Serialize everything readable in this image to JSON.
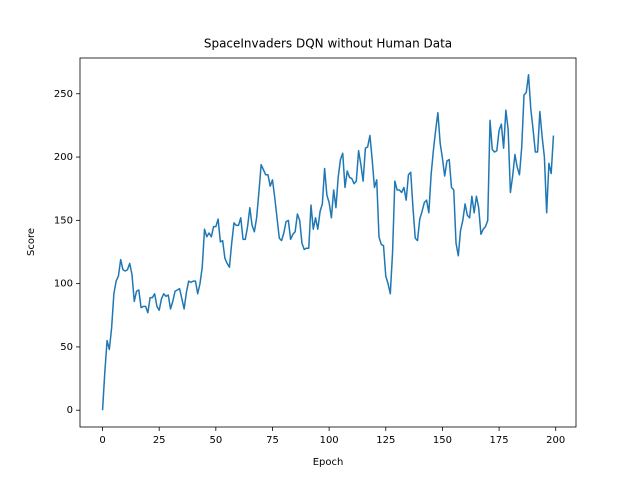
{
  "chart_data": {
    "type": "line",
    "title": "SpaceInvaders DQN without Human Data",
    "x_label": "Epoch",
    "y_label": "Score",
    "x": [
      0,
      1,
      2,
      3,
      4,
      5,
      6,
      7,
      8,
      9,
      10,
      11,
      12,
      13,
      14,
      15,
      16,
      17,
      18,
      19,
      20,
      21,
      22,
      23,
      24,
      25,
      26,
      27,
      28,
      29,
      30,
      31,
      32,
      33,
      34,
      35,
      36,
      37,
      38,
      39,
      40,
      41,
      42,
      43,
      44,
      45,
      46,
      47,
      48,
      49,
      50,
      51,
      52,
      53,
      54,
      55,
      56,
      57,
      58,
      59,
      60,
      61,
      62,
      63,
      64,
      65,
      66,
      67,
      68,
      69,
      70,
      71,
      72,
      73,
      74,
      75,
      76,
      77,
      78,
      79,
      80,
      81,
      82,
      83,
      84,
      85,
      86,
      87,
      88,
      89,
      90,
      91,
      92,
      93,
      94,
      95,
      96,
      97,
      98,
      99,
      100,
      101,
      102,
      103,
      104,
      105,
      106,
      107,
      108,
      109,
      110,
      111,
      112,
      113,
      114,
      115,
      116,
      117,
      118,
      119,
      120,
      121,
      122,
      123,
      124,
      125,
      126,
      127,
      128,
      129,
      130,
      131,
      132,
      133,
      134,
      135,
      136,
      137,
      138,
      139,
      140,
      141,
      142,
      143,
      144,
      145,
      146,
      147,
      148,
      149,
      150,
      151,
      152,
      153,
      154,
      155,
      156,
      157,
      158,
      159,
      160,
      161,
      162,
      163,
      164,
      165,
      166,
      167,
      168,
      169,
      170,
      171,
      172,
      173,
      174,
      175,
      176,
      177,
      178,
      179,
      180,
      181,
      182,
      183,
      184,
      185,
      186,
      187,
      188,
      189,
      190,
      191,
      192,
      193,
      194,
      195,
      196,
      197,
      198,
      199
    ],
    "series": [
      {
        "color": "#1f77b4",
        "values": [
          0,
          30,
          55,
          48,
          65,
          92,
          102,
          106,
          119,
          111,
          110,
          111,
          116,
          107,
          86,
          94,
          95,
          81,
          82,
          82,
          77,
          89,
          89,
          92,
          82,
          79,
          88,
          92,
          90,
          91,
          80,
          86,
          94,
          95,
          96,
          88,
          80,
          93,
          102,
          101,
          102,
          102,
          92,
          100,
          113,
          143,
          137,
          140,
          137,
          145,
          145,
          151,
          133,
          134,
          120,
          116,
          113,
          132,
          148,
          146,
          146,
          152,
          135,
          135,
          145,
          160,
          146,
          141,
          152,
          172,
          194,
          190,
          186,
          186,
          177,
          182,
          168,
          152,
          136,
          134,
          140,
          149,
          150,
          135,
          139,
          141,
          155,
          150,
          132,
          127,
          128,
          128,
          162,
          143,
          152,
          143,
          157,
          163,
          191,
          170,
          164,
          152,
          174,
          160,
          184,
          198,
          203,
          176,
          189,
          184,
          183,
          179,
          181,
          205,
          194,
          181,
          207,
          208,
          217,
          198,
          176,
          182,
          137,
          131,
          130,
          106,
          100,
          92,
          125,
          181,
          174,
          174,
          172,
          176,
          166,
          186,
          188,
          160,
          136,
          134,
          151,
          157,
          164,
          166,
          156,
          186,
          205,
          221,
          235,
          211,
          199,
          185,
          197,
          198,
          176,
          174,
          132,
          122,
          142,
          150,
          163,
          154,
          152,
          169,
          156,
          169,
          160,
          139,
          143,
          145,
          150,
          229,
          206,
          204,
          205,
          221,
          226,
          207,
          237,
          222,
          172,
          185,
          202,
          192,
          186,
          208,
          249,
          251,
          265,
          238,
          222,
          204,
          204,
          236,
          216,
          200,
          156,
          195,
          187,
          217
        ]
      }
    ],
    "xlim": [
      -9.95,
      208.95
    ],
    "xticks": [
      0,
      25,
      50,
      75,
      100,
      125,
      150,
      175,
      200
    ],
    "ylim": [
      -13.25,
      278.25
    ],
    "yticks": [
      0,
      50,
      100,
      150,
      200,
      250
    ]
  }
}
